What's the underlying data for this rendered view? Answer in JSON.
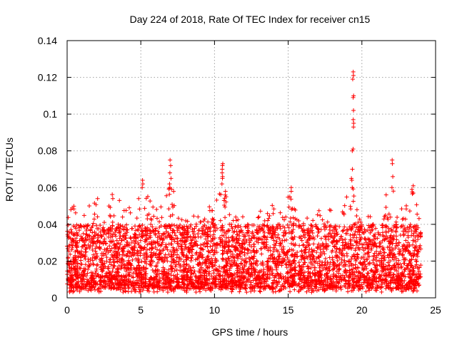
{
  "chart_data": {
    "type": "scatter",
    "title": "Day 224 of 2018, Rate Of TEC Index for receiver cn15",
    "xlabel": "GPS time / hours",
    "ylabel": "ROTI / TECUs",
    "xlim": [
      0,
      25
    ],
    "ylim": [
      0,
      0.14
    ],
    "x_ticks": [
      0,
      5,
      10,
      15,
      20,
      25
    ],
    "x_tick_labels": [
      "0",
      "5",
      "10",
      "15",
      "20",
      "25"
    ],
    "y_ticks": [
      0,
      0.02,
      0.04,
      0.06,
      0.08,
      0.1,
      0.12,
      0.14
    ],
    "y_tick_labels": [
      "0",
      "0.02",
      "0.04",
      "0.06",
      "0.08",
      "0.1",
      "0.12",
      "0.14"
    ],
    "grid": true,
    "marker": "+",
    "color": "#ff0000",
    "x_range_of_data": [
      0,
      24
    ],
    "baseline_band": {
      "typical_low": 0.005,
      "typical_high": 0.04
    },
    "envelope": [
      {
        "x": 0.0,
        "max": 0.052
      },
      {
        "x": 0.5,
        "max": 0.05
      },
      {
        "x": 1.0,
        "max": 0.048
      },
      {
        "x": 1.5,
        "max": 0.05
      },
      {
        "x": 2.0,
        "max": 0.058
      },
      {
        "x": 2.5,
        "max": 0.045
      },
      {
        "x": 3.0,
        "max": 0.058
      },
      {
        "x": 3.5,
        "max": 0.055
      },
      {
        "x": 4.0,
        "max": 0.05
      },
      {
        "x": 4.5,
        "max": 0.057
      },
      {
        "x": 5.0,
        "max": 0.064
      },
      {
        "x": 5.5,
        "max": 0.056
      },
      {
        "x": 6.0,
        "max": 0.048
      },
      {
        "x": 6.5,
        "max": 0.052
      },
      {
        "x": 7.0,
        "max": 0.075
      },
      {
        "x": 7.5,
        "max": 0.045
      },
      {
        "x": 8.0,
        "max": 0.042
      },
      {
        "x": 8.5,
        "max": 0.045
      },
      {
        "x": 9.0,
        "max": 0.046
      },
      {
        "x": 9.5,
        "max": 0.052
      },
      {
        "x": 10.0,
        "max": 0.05
      },
      {
        "x": 10.5,
        "max": 0.073
      },
      {
        "x": 11.0,
        "max": 0.057
      },
      {
        "x": 11.5,
        "max": 0.046
      },
      {
        "x": 12.0,
        "max": 0.044
      },
      {
        "x": 12.5,
        "max": 0.042
      },
      {
        "x": 13.0,
        "max": 0.047
      },
      {
        "x": 13.5,
        "max": 0.05
      },
      {
        "x": 14.0,
        "max": 0.054
      },
      {
        "x": 14.5,
        "max": 0.046
      },
      {
        "x": 15.0,
        "max": 0.06
      },
      {
        "x": 15.5,
        "max": 0.048
      },
      {
        "x": 16.0,
        "max": 0.046
      },
      {
        "x": 16.5,
        "max": 0.045
      },
      {
        "x": 17.0,
        "max": 0.048
      },
      {
        "x": 17.5,
        "max": 0.046
      },
      {
        "x": 18.0,
        "max": 0.049
      },
      {
        "x": 18.5,
        "max": 0.05
      },
      {
        "x": 19.0,
        "max": 0.07
      },
      {
        "x": 19.4,
        "max": 0.123
      },
      {
        "x": 19.8,
        "max": 0.047
      },
      {
        "x": 20.5,
        "max": 0.045
      },
      {
        "x": 21.0,
        "max": 0.042
      },
      {
        "x": 21.5,
        "max": 0.05
      },
      {
        "x": 22.0,
        "max": 0.075
      },
      {
        "x": 22.5,
        "max": 0.048
      },
      {
        "x": 23.0,
        "max": 0.05
      },
      {
        "x": 23.5,
        "max": 0.061
      },
      {
        "x": 24.0,
        "max": 0.04
      }
    ],
    "spikes": [
      {
        "x": 7.0,
        "values": [
          0.068,
          0.072,
          0.075,
          0.065,
          0.062,
          0.06
        ]
      },
      {
        "x": 10.55,
        "values": [
          0.07,
          0.072,
          0.073,
          0.068,
          0.066,
          0.065,
          0.062
        ]
      },
      {
        "x": 10.75,
        "values": [
          0.058,
          0.056,
          0.055
        ]
      },
      {
        "x": 19.3,
        "values": [
          0.07,
          0.065,
          0.064,
          0.06
        ]
      },
      {
        "x": 19.4,
        "values": [
          0.123,
          0.121,
          0.119,
          0.11,
          0.109,
          0.102,
          0.097,
          0.095,
          0.093,
          0.081,
          0.08
        ]
      },
      {
        "x": 22.05,
        "values": [
          0.075,
          0.073,
          0.066,
          0.06
        ]
      },
      {
        "x": 23.45,
        "values": [
          0.061,
          0.059,
          0.057
        ]
      },
      {
        "x": 15.15,
        "values": [
          0.06,
          0.058,
          0.055
        ]
      },
      {
        "x": 5.1,
        "values": [
          0.064,
          0.062,
          0.06
        ]
      }
    ]
  }
}
